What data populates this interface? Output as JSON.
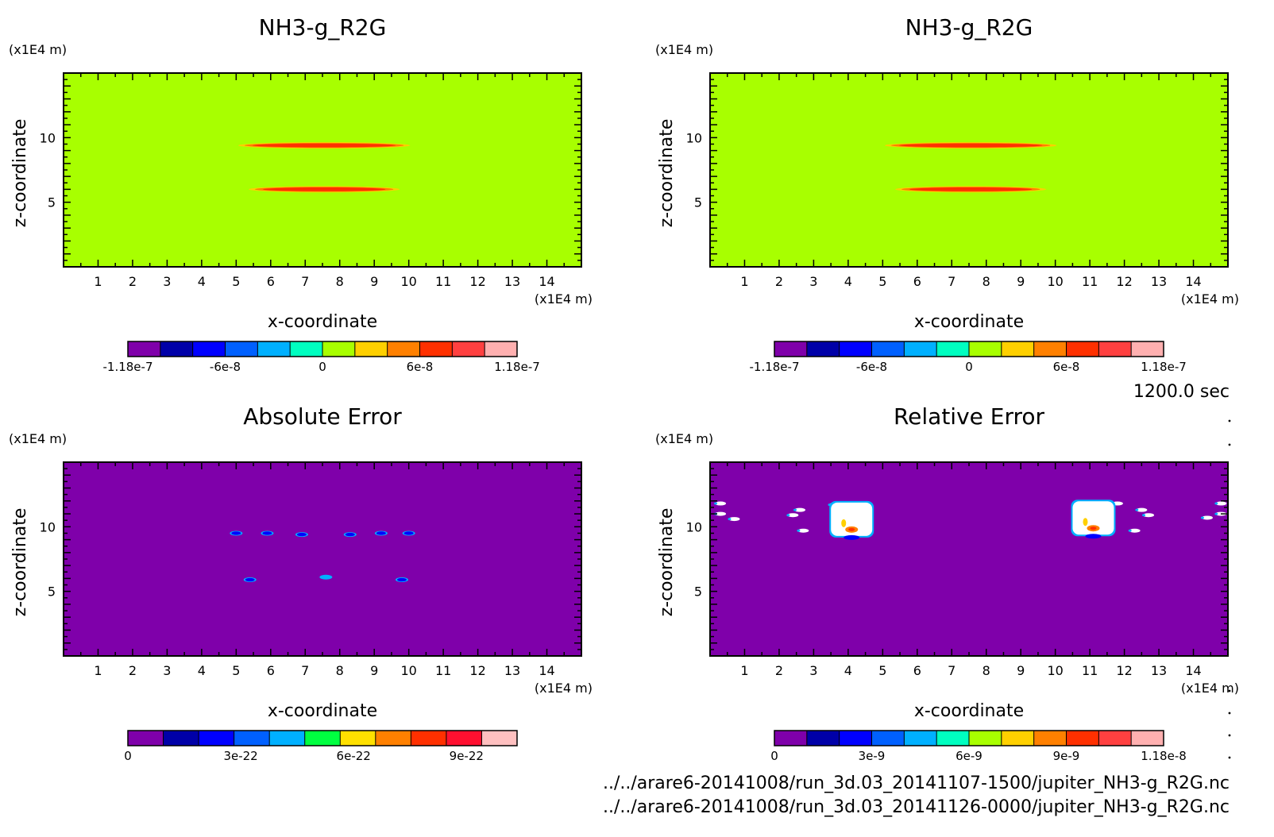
{
  "timestamp": "1200.0 sec",
  "files": [
    "../../arare6-20141008/run_3d.03_20141107-1500/jupiter_NH3-g_R2G.nc",
    "../../arare6-20141008/run_3d.03_20141126-0000/jupiter_NH3-g_R2G.nc"
  ],
  "chart_data": [
    {
      "type": "heatmap",
      "title": "NH3-g_R2G",
      "xlabel": "x-coordinate",
      "ylabel": "z-coordinate",
      "x_unit": "(x1E4 m)",
      "y_unit": "(x1E4 m)",
      "xlim": [
        0,
        15
      ],
      "ylim": [
        0,
        15
      ],
      "x_ticks": [
        "1",
        "2",
        "3",
        "4",
        "5",
        "6",
        "7",
        "8",
        "9",
        "10",
        "11",
        "12",
        "13",
        "14"
      ],
      "y_ticks": [
        "5",
        "10"
      ],
      "background_color": "#a8ff00",
      "features": [
        {
          "z": 9.4,
          "x_start": 5.2,
          "x_end": 9.9,
          "color": "#ff3000"
        },
        {
          "z": 6.0,
          "x_start": 5.5,
          "x_end": 9.6,
          "color": "#ff3000"
        }
      ],
      "colorbar": {
        "colors": [
          "#7f00aa",
          "#0000a8",
          "#0000ff",
          "#0060ff",
          "#00b0ff",
          "#00ffc0",
          "#a8ff00",
          "#ffd000",
          "#ff8000",
          "#ff3000",
          "#ff4040",
          "#ffb0b0"
        ],
        "tick_labels": [
          "-1.18e-7",
          "-6e-8",
          "0",
          "6e-8",
          "1.18e-7"
        ]
      }
    },
    {
      "type": "heatmap",
      "title": "NH3-g_R2G",
      "xlabel": "x-coordinate",
      "ylabel": "z-coordinate",
      "x_unit": "(x1E4 m)",
      "y_unit": "(x1E4 m)",
      "xlim": [
        0,
        15
      ],
      "ylim": [
        0,
        15
      ],
      "x_ticks": [
        "1",
        "2",
        "3",
        "4",
        "5",
        "6",
        "7",
        "8",
        "9",
        "10",
        "11",
        "12",
        "13",
        "14"
      ],
      "y_ticks": [
        "5",
        "10"
      ],
      "background_color": "#a8ff00",
      "features": [
        {
          "z": 9.4,
          "x_start": 5.2,
          "x_end": 9.9,
          "color": "#ff3000"
        },
        {
          "z": 6.0,
          "x_start": 5.5,
          "x_end": 9.6,
          "color": "#ff3000"
        }
      ],
      "colorbar": {
        "colors": [
          "#7f00aa",
          "#0000a8",
          "#0000ff",
          "#0060ff",
          "#00b0ff",
          "#00ffc0",
          "#a8ff00",
          "#ffd000",
          "#ff8000",
          "#ff3000",
          "#ff4040",
          "#ffb0b0"
        ],
        "tick_labels": [
          "-1.18e-7",
          "-6e-8",
          "0",
          "6e-8",
          "1.18e-7"
        ]
      }
    },
    {
      "type": "heatmap",
      "title": "Absolute Error",
      "xlabel": "x-coordinate",
      "ylabel": "z-coordinate",
      "x_unit": "(x1E4 m)",
      "y_unit": "(x1E4 m)",
      "xlim": [
        0,
        15
      ],
      "ylim": [
        0,
        15
      ],
      "x_ticks": [
        "1",
        "2",
        "3",
        "4",
        "5",
        "6",
        "7",
        "8",
        "9",
        "10",
        "11",
        "12",
        "13",
        "14"
      ],
      "y_ticks": [
        "5",
        "10"
      ],
      "background_color": "#7f00aa",
      "blobs": [
        {
          "x": 5.0,
          "z": 9.5,
          "color": "#0000ff"
        },
        {
          "x": 5.9,
          "z": 9.5,
          "color": "#0000ff"
        },
        {
          "x": 6.9,
          "z": 9.4,
          "color": "#0000ff"
        },
        {
          "x": 8.3,
          "z": 9.4,
          "color": "#0000ff"
        },
        {
          "x": 9.2,
          "z": 9.5,
          "color": "#0000ff"
        },
        {
          "x": 10.0,
          "z": 9.5,
          "color": "#0000ff"
        },
        {
          "x": 5.4,
          "z": 5.9,
          "color": "#0000ff"
        },
        {
          "x": 7.6,
          "z": 6.1,
          "color": "#00b0ff"
        },
        {
          "x": 9.8,
          "z": 5.9,
          "color": "#0000ff"
        }
      ],
      "colorbar": {
        "colors": [
          "#7f00aa",
          "#0000a8",
          "#0000ff",
          "#0060ff",
          "#00b0ff",
          "#00ff40",
          "#ffe000",
          "#ff8000",
          "#ff3000",
          "#ff1030",
          "#ffc0c0"
        ],
        "tick_labels": [
          "0",
          "3e-22",
          "6e-22",
          "9e-22"
        ]
      }
    },
    {
      "type": "heatmap",
      "title": "Relative Error",
      "xlabel": "x-coordinate",
      "ylabel": "z-coordinate",
      "x_unit": "(x1E4 m)",
      "y_unit": "(x1E4 m)",
      "xlim": [
        0,
        15
      ],
      "ylim": [
        0,
        15
      ],
      "x_ticks": [
        "1",
        "2",
        "3",
        "4",
        "5",
        "6",
        "7",
        "8",
        "9",
        "10",
        "11",
        "12",
        "13",
        "14"
      ],
      "y_ticks": [
        "5",
        "10"
      ],
      "background_color": "#7f00aa",
      "blobs": [
        {
          "x": 0.3,
          "z": 11.8,
          "color": "#ffffff"
        },
        {
          "x": 0.3,
          "z": 11.0,
          "color": "#ffffff"
        },
        {
          "x": 0.7,
          "z": 10.6,
          "color": "#ffffff"
        },
        {
          "x": 2.6,
          "z": 11.3,
          "color": "#ffffff"
        },
        {
          "x": 2.4,
          "z": 10.9,
          "color": "#ffffff"
        },
        {
          "x": 2.7,
          "z": 9.7,
          "color": "#ffffff"
        },
        {
          "x": 3.6,
          "z": 11.7,
          "color": "#ffffff"
        },
        {
          "x": 11.8,
          "z": 11.8,
          "color": "#ffffff"
        },
        {
          "x": 12.5,
          "z": 11.3,
          "color": "#ffffff"
        },
        {
          "x": 12.7,
          "z": 10.9,
          "color": "#ffffff"
        },
        {
          "x": 12.3,
          "z": 9.7,
          "color": "#ffffff"
        },
        {
          "x": 14.4,
          "z": 10.7,
          "color": "#ffffff"
        },
        {
          "x": 14.8,
          "z": 11.0,
          "color": "#ffffff"
        },
        {
          "x": 14.8,
          "z": 11.8,
          "color": "#ffffff"
        }
      ],
      "hotspots": [
        {
          "x": 4.1,
          "z": 10.4
        },
        {
          "x": 11.1,
          "z": 10.5
        }
      ],
      "colorbar": {
        "colors": [
          "#7f00aa",
          "#0000a8",
          "#0000ff",
          "#0060ff",
          "#00b0ff",
          "#00ffc0",
          "#a8ff00",
          "#ffd000",
          "#ff8000",
          "#ff3000",
          "#ff4040",
          "#ffb0b0"
        ],
        "tick_labels": [
          "0",
          "3e-9",
          "6e-9",
          "9e-9",
          "1.18e-8"
        ]
      }
    }
  ]
}
